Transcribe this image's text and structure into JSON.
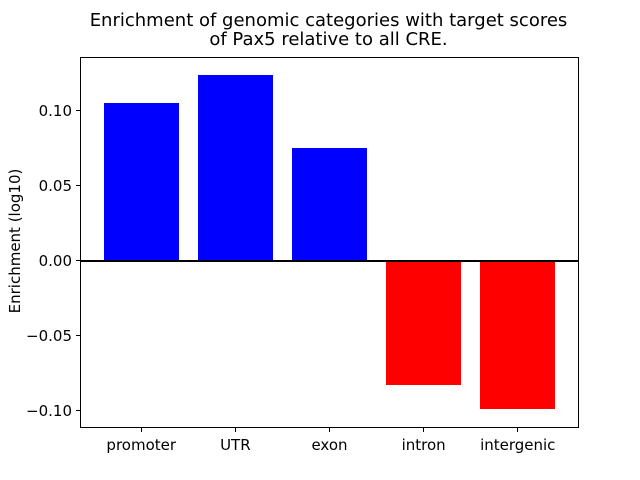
{
  "figure": {
    "background": "#ffffff"
  },
  "chart_data": {
    "type": "bar",
    "title": "Enrichment of genomic categories with target scores\nof Pax5 relative to all CRE.",
    "xlabel": "",
    "ylabel": "Enrichment (log10)",
    "categories": [
      "promoter",
      "UTR",
      "exon",
      "intron",
      "intergenic"
    ],
    "values": [
      0.105,
      0.124,
      0.075,
      -0.083,
      -0.099
    ],
    "bar_colors": [
      "#0000ff",
      "#0000ff",
      "#0000ff",
      "#ff0000",
      "#ff0000"
    ],
    "positive_color": "#0000ff",
    "negative_color": "#ff0000",
    "ylim": [
      -0.111,
      0.135
    ],
    "xlim": [
      -0.64,
      4.64
    ],
    "bar_width_fraction": 0.8,
    "yticks": [
      0.1,
      0.05,
      0.0,
      -0.05,
      -0.1
    ],
    "ytick_labels": [
      "0.10",
      "0.05",
      "0.00",
      "−0.05",
      "−0.10"
    ],
    "grid": false,
    "legend": false,
    "zero_line": true,
    "axis_color": "#000000",
    "text_color": "#000000"
  }
}
